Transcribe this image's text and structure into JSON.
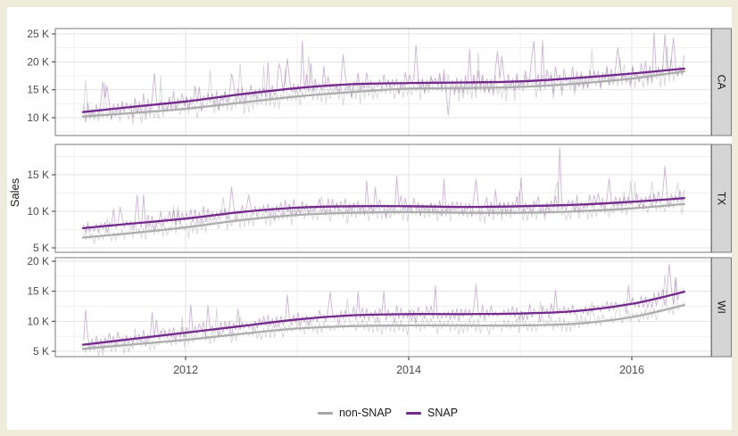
{
  "figure": {
    "background_color": "#f0ecdb",
    "panel_background": "#ffffff",
    "strip_fill": "#d5d5d5",
    "border_color": "#7a7a7a",
    "grid_major_color": "#e3e3e3",
    "grid_minor_color": "#f0f0f0",
    "tick_text_color": "#4d4d4d"
  },
  "legend": {
    "items": [
      {
        "label": "non-SNAP",
        "color": "#a8a8a8"
      },
      {
        "label": "SNAP",
        "color": "#732b8b"
      }
    ]
  },
  "chart_data": {
    "type": "line",
    "title": "",
    "xlabel": "",
    "ylabel": "Sales",
    "units": "thousands",
    "legend_position": "bottom",
    "grid": true,
    "x_range": [
      2010.83,
      2016.71
    ],
    "data_t_range": [
      2011.085,
      2016.47
    ],
    "points_per_year": 52,
    "x_ticks": [
      {
        "value": 2012,
        "label": "2012"
      },
      {
        "value": 2014,
        "label": "2014"
      },
      {
        "value": 2016,
        "label": "2016"
      }
    ],
    "x_minor": [
      2011,
      2013,
      2015
    ],
    "trend_t": [
      2011.08,
      2011.5,
      2012,
      2012.5,
      2013,
      2013.5,
      2014,
      2014.5,
      2015,
      2015.5,
      2016,
      2016.47
    ],
    "facets": [
      {
        "label": "CA",
        "y_ticks": [
          {
            "value": 10,
            "label": "10 K"
          },
          {
            "value": 15,
            "label": "15 K"
          },
          {
            "value": 20,
            "label": "20 K"
          },
          {
            "value": 25,
            "label": "25 K"
          }
        ],
        "y_minor": [
          7.5,
          12.5,
          17.5,
          22.5
        ],
        "y_domain": [
          6.8,
          25.96
        ],
        "series": [
          {
            "name": "SNAP",
            "trend": [
              11.0,
              11.9,
              12.9,
              14.2,
              15.3,
              16.0,
              16.2,
              16.3,
              16.5,
              17.1,
              17.9,
              18.8
            ],
            "noise": {
              "amp": 2.4,
              "seed": 11,
              "spikes": [
                [
                  2011.25,
                  16.4
                ],
                [
                  2012.42,
                  17.9
                ],
                [
                  2013.05,
                  23.8
                ],
                [
                  2013.42,
                  21.3
                ],
                [
                  2014.35,
                  10.4
                ],
                [
                  2014.55,
                  22.3
                ],
                [
                  2015.1,
                  20.8
                ],
                [
                  2016.2,
                  25.2
                ],
                [
                  2016.38,
                  24.3
                ]
              ]
            }
          },
          {
            "name": "non-SNAP",
            "trend": [
              10.2,
              10.8,
              11.6,
              12.7,
              13.8,
              14.6,
              15.2,
              15.3,
              15.5,
              16.1,
              17.0,
              18.3
            ],
            "noise": {
              "amp": 2.4,
              "seed": 12,
              "spikes": [
                [
                  2013.1,
                  21.0
                ],
                [
                  2015.9,
                  20.8
                ],
                [
                  2016.32,
                  22.8
                ]
              ]
            }
          }
        ]
      },
      {
        "label": "TX",
        "y_ticks": [
          {
            "value": 5,
            "label": "5 K"
          },
          {
            "value": 10,
            "label": "10 K"
          },
          {
            "value": 15,
            "label": "15 K"
          }
        ],
        "y_minor": [
          7.5,
          12.5,
          17.5
        ],
        "y_domain": [
          4.39,
          19.15
        ],
        "series": [
          {
            "name": "SNAP",
            "trend": [
              7.7,
              8.3,
              9.0,
              9.9,
              10.5,
              10.7,
              10.7,
              10.6,
              10.7,
              10.9,
              11.3,
              11.8
            ],
            "noise": {
              "amp": 1.4,
              "seed": 21,
              "spikes": [
                [
                  2013.62,
                  14.2
                ],
                [
                  2014.6,
                  14.4
                ],
                [
                  2015.35,
                  18.8
                ],
                [
                  2016.3,
                  16.2
                ]
              ]
            }
          },
          {
            "name": "non-SNAP",
            "trend": [
              6.4,
              7.0,
              7.8,
              8.8,
              9.5,
              9.8,
              9.9,
              9.8,
              9.8,
              10.0,
              10.4,
              11.0
            ],
            "noise": {
              "amp": 1.4,
              "seed": 22,
              "spikes": []
            }
          }
        ]
      },
      {
        "label": "WI",
        "y_ticks": [
          {
            "value": 5,
            "label": "5 K"
          },
          {
            "value": 10,
            "label": "10 K"
          },
          {
            "value": 15,
            "label": "15 K"
          },
          {
            "value": 20,
            "label": "20 K"
          }
        ],
        "y_minor": [
          7.5,
          12.5,
          17.5
        ],
        "y_domain": [
          3.96,
          20.59
        ],
        "series": [
          {
            "name": "SNAP",
            "trend": [
              6.1,
              7.0,
              8.1,
              9.2,
              10.3,
              11.0,
              11.2,
              11.2,
              11.3,
              11.7,
              12.9,
              14.9
            ],
            "noise": {
              "amp": 1.5,
              "seed": 31,
              "spikes": [
                [
                  2011.1,
                  11.9
                ],
                [
                  2013.77,
                  15.0
                ],
                [
                  2015.97,
                  16.0
                ],
                [
                  2016.33,
                  19.6
                ]
              ]
            }
          },
          {
            "name": "non-SNAP",
            "trend": [
              5.4,
              6.1,
              6.9,
              7.9,
              8.8,
              9.2,
              9.3,
              9.3,
              9.3,
              9.6,
              10.7,
              12.7
            ],
            "noise": {
              "amp": 1.5,
              "seed": 32,
              "spikes": [
                [
                  2016.3,
                  17.8
                ]
              ]
            }
          }
        ]
      }
    ],
    "series_styles": [
      {
        "name": "SNAP",
        "smooth_color": "#732b8b",
        "raw_color": "#8a4d9e",
        "raw_opacity": 0.42
      },
      {
        "name": "non-SNAP",
        "smooth_color": "#adadad",
        "raw_color": "#9b9b9b",
        "raw_opacity": 0.4
      }
    ]
  }
}
